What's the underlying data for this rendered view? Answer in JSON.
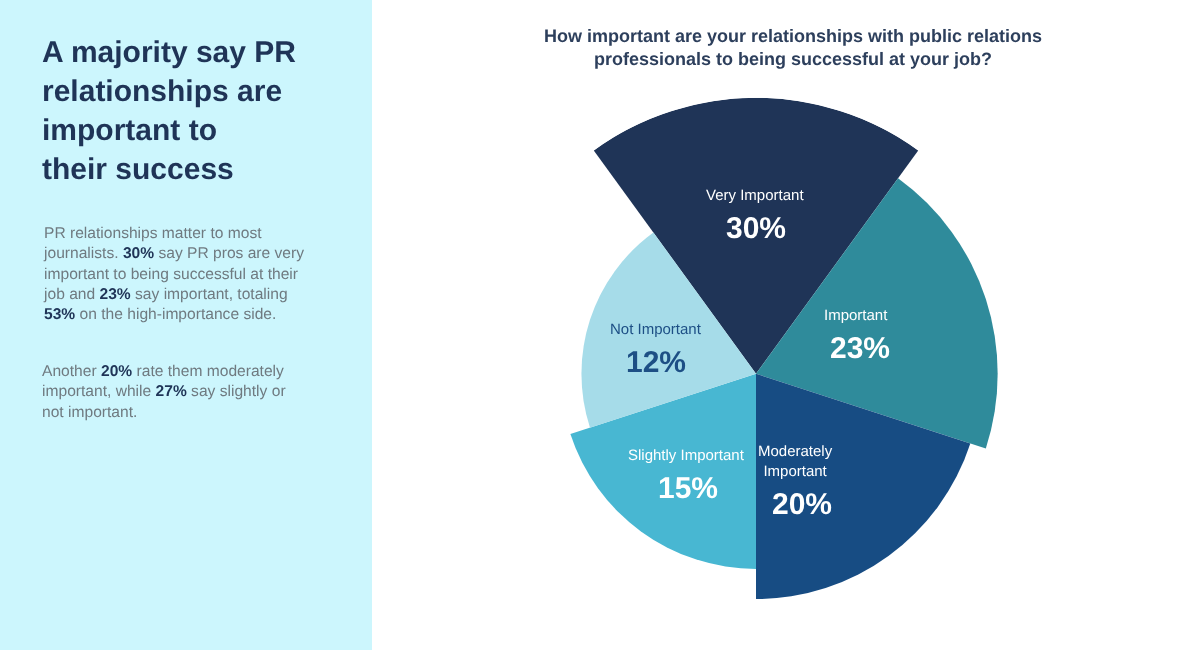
{
  "chart_data": {
    "type": "other",
    "title": "How important are your relationships with public relations professionals to being successful at your job?",
    "categories": [
      "Very Important",
      "Important",
      "Moderately Important",
      "Slightly Important",
      "Not Important"
    ],
    "values": [
      30,
      23,
      20,
      15,
      12
    ],
    "value_labels": [
      "30%",
      "23%",
      "20%",
      "15%",
      "12%"
    ],
    "colors": [
      "#1f3457",
      "#2f8b9b",
      "#174c83",
      "#48b7d2",
      "#a6dce9"
    ],
    "legend": false,
    "annotations": [
      "A majority say PR relationships are important to their success",
      "PR relationships matter to most journalists. 30% say PR pros are very important to being successful at their job and 23% say important, totaling 53% on the high-importance side.",
      "Another 20% rate them moderately important, while 27% say slightly or not important."
    ]
  }
}
